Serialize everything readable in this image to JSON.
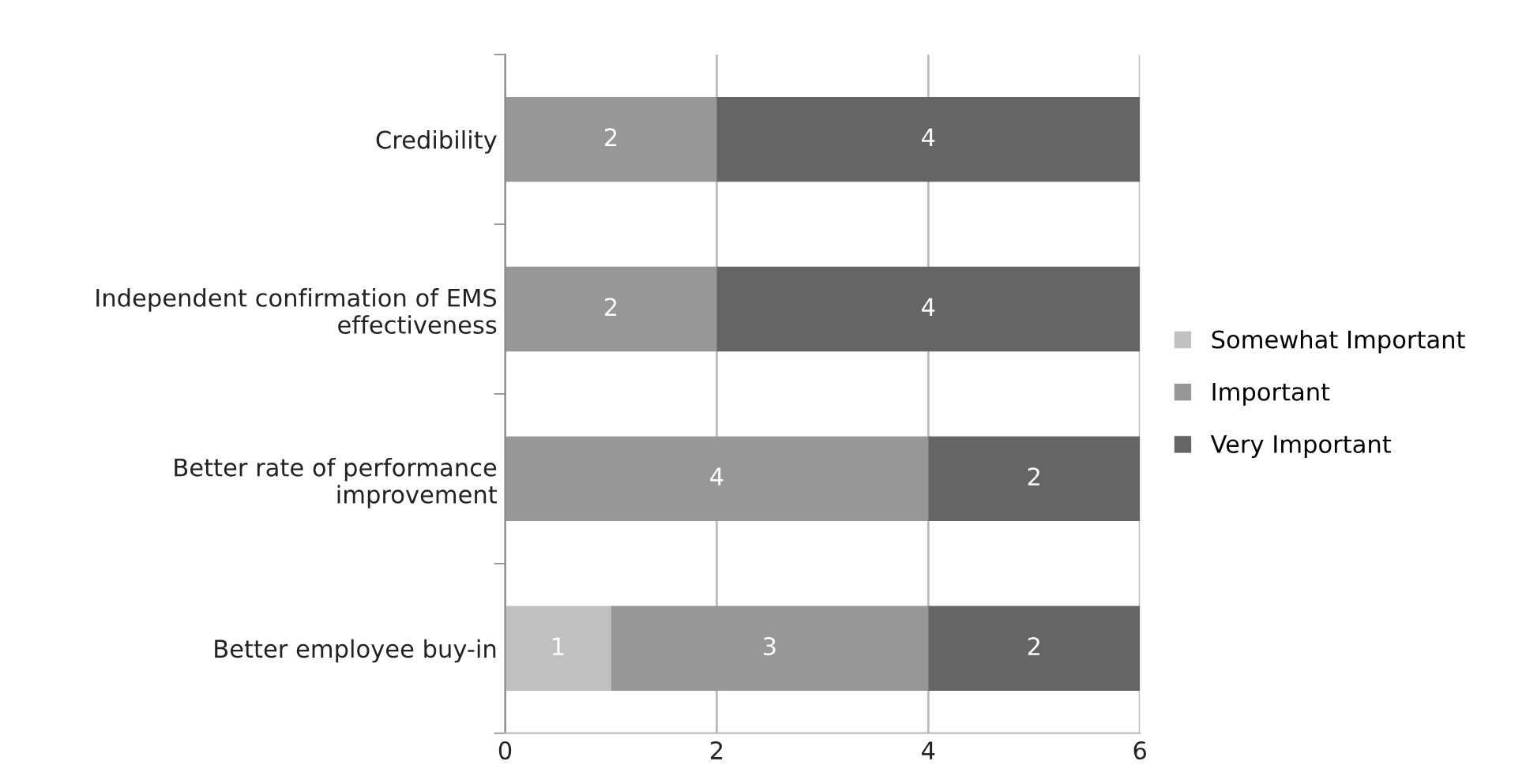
{
  "chart_data": {
    "type": "bar",
    "orientation": "horizontal",
    "stacked": true,
    "categories": [
      "Credibility",
      "Independent confirmation of EMS\neffectiveness",
      "Better rate of performance\nimprovement",
      "Better employee buy-in"
    ],
    "series": [
      {
        "name": "Somewhat Important",
        "color": "#c0c0c0",
        "values": [
          null,
          null,
          null,
          1
        ]
      },
      {
        "name": "Important",
        "color": "#979797",
        "values": [
          2,
          2,
          4,
          3
        ]
      },
      {
        "name": "Very Important",
        "color": "#656565",
        "values": [
          4,
          4,
          2,
          2
        ]
      }
    ],
    "xlim": [
      0,
      6
    ],
    "xticks": [
      0,
      2,
      4,
      6
    ],
    "grid": "x",
    "legend": "right",
    "data_labels": true
  }
}
